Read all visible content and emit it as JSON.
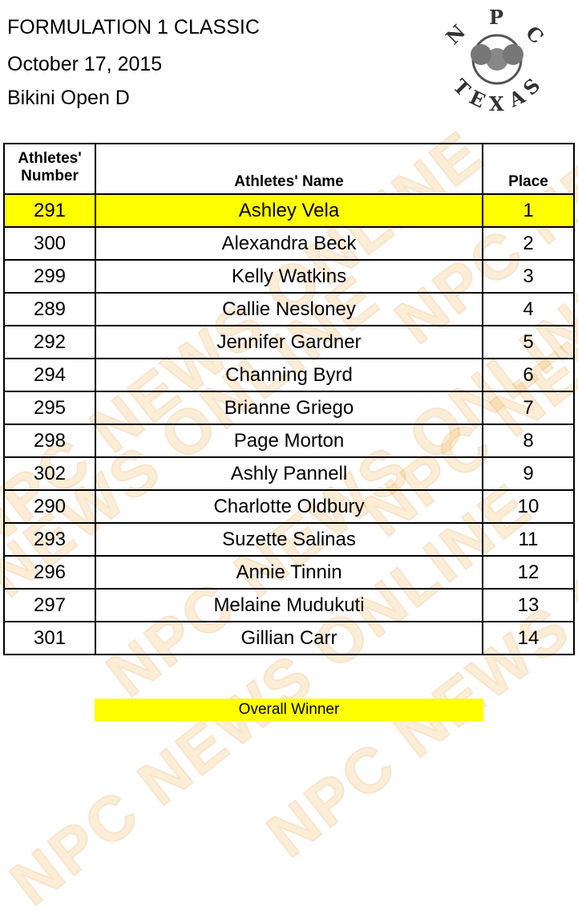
{
  "header": {
    "title": "FORMULATION 1 CLASSIC",
    "date": "October 17, 2015",
    "division": "Bikini Open D"
  },
  "logo": {
    "text": "NPC TEXAS",
    "letters": [
      "N",
      "P",
      "C",
      "T",
      "E",
      "X",
      "A",
      "S"
    ]
  },
  "watermark": "NPC NEWS ONLINE",
  "table": {
    "columns": [
      "Athletes' Number",
      "Athletes' Name",
      "Place"
    ],
    "rows": [
      {
        "number": "291",
        "name": "Ashley Vela",
        "place": "1"
      },
      {
        "number": "300",
        "name": "Alexandra Beck",
        "place": "2"
      },
      {
        "number": "299",
        "name": "Kelly Watkins",
        "place": "3"
      },
      {
        "number": "289",
        "name": "Callie Nesloney",
        "place": "4"
      },
      {
        "number": "292",
        "name": "Jennifer Gardner",
        "place": "5"
      },
      {
        "number": "294",
        "name": "Channing Byrd",
        "place": "6"
      },
      {
        "number": "295",
        "name": "Brianne Griego",
        "place": "7"
      },
      {
        "number": "298",
        "name": "Page Morton",
        "place": "8"
      },
      {
        "number": "302",
        "name": "Ashly Pannell",
        "place": "9"
      },
      {
        "number": "290",
        "name": "Charlotte Oldbury",
        "place": "10"
      },
      {
        "number": "293",
        "name": "Suzette Salinas",
        "place": "11"
      },
      {
        "number": "296",
        "name": "Annie Tinnin",
        "place": "12"
      },
      {
        "number": "297",
        "name": "Melaine Mudukuti",
        "place": "13"
      },
      {
        "number": "301",
        "name": "Gillian Carr",
        "place": "14"
      }
    ]
  },
  "footer": {
    "overall_winner": "Overall Winner"
  },
  "colors": {
    "highlight": "#ffff00",
    "watermark": "#f4b04a"
  }
}
